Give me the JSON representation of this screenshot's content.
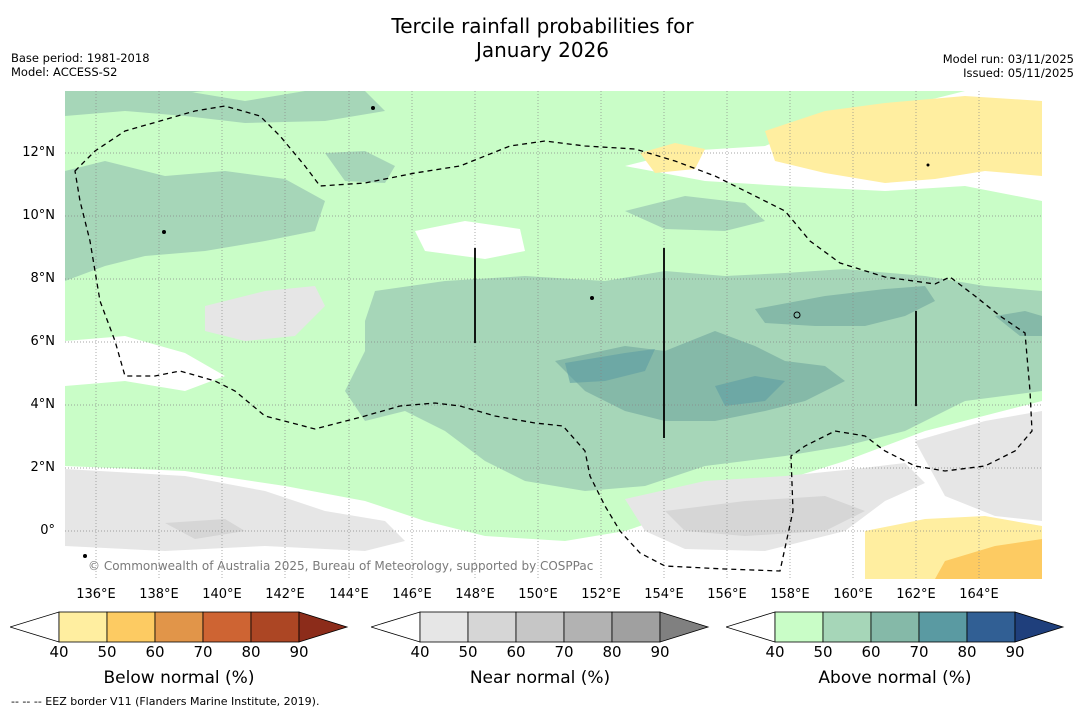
{
  "title_line1": "Tercile rainfall probabilities for",
  "title_line2": "January 2026",
  "base_period": "Base period: 1981-2018",
  "model": "Model: ACCESS-S2",
  "model_run": "Model run: 03/11/2025",
  "issued": "Issued: 05/11/2025",
  "lat_labels": [
    "12°N",
    "10°N",
    "8°N",
    "6°N",
    "4°N",
    "2°N",
    "0°"
  ],
  "lon_labels": [
    "136°E",
    "138°E",
    "140°E",
    "142°E",
    "144°E",
    "146°E",
    "148°E",
    "150°E",
    "152°E",
    "154°E",
    "156°E",
    "158°E",
    "160°E",
    "162°E",
    "164°E"
  ],
  "copyright": "© Commonwealth of Australia 2025, Bureau of Meteorology, supported by COSPPac",
  "colorbars": [
    {
      "title": "Below normal (%)",
      "ticks": [
        "40",
        "50",
        "60",
        "70",
        "80",
        "90"
      ],
      "colors": [
        "#ffffff",
        "#ffeea0",
        "#fdcb62",
        "#e19549",
        "#ce6433",
        "#ac4624",
        "#8c2c1a"
      ]
    },
    {
      "title": "Near normal (%)",
      "ticks": [
        "40",
        "50",
        "60",
        "70",
        "80",
        "90"
      ],
      "colors": [
        "#ffffff",
        "#e6e6e6",
        "#d6d6d6",
        "#c6c6c6",
        "#b2b2b2",
        "#a0a0a0",
        "#808080"
      ]
    },
    {
      "title": "Above normal (%)",
      "ticks": [
        "40",
        "50",
        "60",
        "70",
        "80",
        "90"
      ],
      "colors": [
        "#ffffff",
        "#c9fdc7",
        "#a6d6b8",
        "#85b9a8",
        "#5a9aa2",
        "#315f94",
        "#1f3f7c"
      ]
    }
  ],
  "footnote": "--  --  -- EEZ border V11 (Flanders Marine Institute, 2019)."
}
